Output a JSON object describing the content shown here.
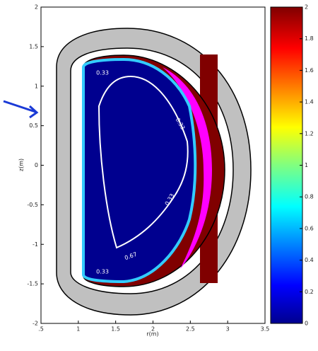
{
  "chart_data": {
    "type": "contour",
    "xlabel": "r(m)",
    "ylabel": "z(m)",
    "xlim": [
      0.5,
      3.5
    ],
    "xticks": [
      {
        "value": 0.5,
        "label": ".5"
      },
      1,
      1.5,
      2,
      2.5,
      3,
      3.5
    ],
    "ylim": [
      -2,
      2
    ],
    "yticks": [
      -2,
      -1.5,
      -1,
      -0.5,
      0,
      0.5,
      1,
      1.5,
      2
    ],
    "clim": [
      0,
      2
    ],
    "cticks": [
      0,
      0.2,
      0.4,
      0.6,
      0.8,
      1,
      1.2,
      1.4,
      1.6,
      1.8,
      2
    ],
    "contour_labels": [
      "0.33",
      "0.33",
      "0.67",
      "0.33",
      "0.33"
    ]
  }
}
